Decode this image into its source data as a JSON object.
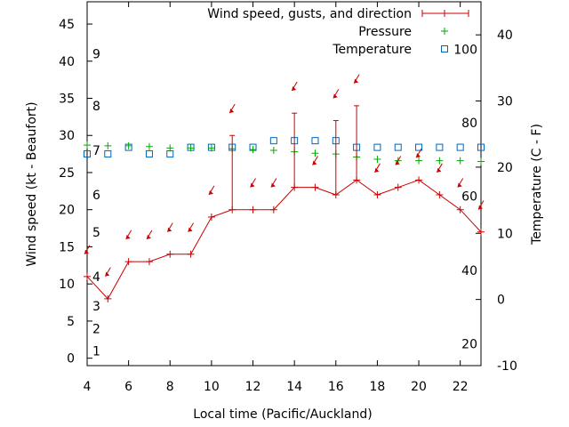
{
  "chart_data": {
    "type": "line",
    "x_label": "Local time (Pacific/Auckland)",
    "y_left_label": "Wind speed (kt - Beaufort)",
    "y_right_label": "Temperature (C - F)",
    "x_range": [
      4,
      23
    ],
    "y_left_range": [
      -1,
      48
    ],
    "y_right_range": [
      -10,
      45
    ],
    "x_ticks": [
      4,
      6,
      8,
      10,
      12,
      14,
      16,
      18,
      20,
      22
    ],
    "y_left_ticks": [
      0,
      5,
      10,
      15,
      20,
      25,
      30,
      35,
      40,
      45
    ],
    "y_right_ticks": [
      -10,
      0,
      10,
      20,
      30,
      40
    ],
    "beaufort_labels": [
      {
        "label": "1",
        "kt": 1
      },
      {
        "label": "2",
        "kt": 4
      },
      {
        "label": "3",
        "kt": 7
      },
      {
        "label": "4",
        "kt": 11
      },
      {
        "label": "5",
        "kt": 17
      },
      {
        "label": "6",
        "kt": 22
      },
      {
        "label": "7",
        "kt": 28
      },
      {
        "label": "8",
        "kt": 34
      },
      {
        "label": "9",
        "kt": 41
      }
    ],
    "fahrenheit_labels": [
      {
        "label": "20",
        "c": -6.7
      },
      {
        "label": "40",
        "c": 4.4
      },
      {
        "label": "60",
        "c": 15.6
      },
      {
        "label": "80",
        "c": 26.7
      },
      {
        "label": "100",
        "c": 37.8
      }
    ],
    "legend": [
      {
        "name": "Wind speed, gusts, and direction",
        "color": "#cc0000"
      },
      {
        "name": "Pressure",
        "color": "#00aa00"
      },
      {
        "name": "Temperature",
        "color": "#0066bb"
      }
    ],
    "legend_position": "top-right",
    "series": [
      {
        "name": "Wind speed, gusts, and direction",
        "x": [
          4,
          5,
          6,
          7,
          8,
          9,
          10,
          11,
          12,
          13,
          14,
          15,
          16,
          17,
          18,
          19,
          20,
          21,
          22,
          23
        ],
        "values": [
          11,
          8,
          13,
          13,
          14,
          14,
          19,
          20,
          20,
          20,
          23,
          23,
          22,
          24,
          22,
          23,
          24,
          22,
          20,
          17
        ],
        "gusts": [
          null,
          null,
          null,
          null,
          null,
          null,
          null,
          30,
          null,
          null,
          33,
          null,
          32,
          34,
          null,
          null,
          null,
          null,
          null,
          null
        ],
        "arrow_y": [
          14.5,
          11.5,
          16.5,
          16.5,
          17.5,
          17.5,
          22.5,
          33.5,
          23.5,
          23.5,
          36.5,
          26.5,
          35.5,
          37.5,
          25.5,
          26.5,
          27.5,
          25.5,
          23.5,
          20.5
        ]
      },
      {
        "name": "Pressure",
        "x": [
          4,
          5,
          6,
          7,
          8,
          9,
          10,
          11,
          12,
          13,
          14,
          15,
          16,
          17,
          18,
          19,
          20,
          21,
          22,
          23
        ],
        "values": [
          28.7,
          28.6,
          28.6,
          28.5,
          28.3,
          28.3,
          28.3,
          28.2,
          28.1,
          28.0,
          27.8,
          27.6,
          27.5,
          27.1,
          26.8,
          26.6,
          26.6,
          26.6,
          26.6,
          26.5
        ]
      },
      {
        "name": "Temperature",
        "axis": "right",
        "x": [
          4,
          5,
          6,
          7,
          8,
          9,
          10,
          11,
          12,
          13,
          14,
          15,
          16,
          17,
          18,
          19,
          20,
          21,
          22,
          23
        ],
        "values": [
          22,
          22,
          23,
          22,
          22,
          23,
          23,
          23,
          23,
          24,
          24,
          24,
          24,
          23,
          23,
          23,
          23,
          23,
          23,
          23
        ]
      }
    ]
  }
}
